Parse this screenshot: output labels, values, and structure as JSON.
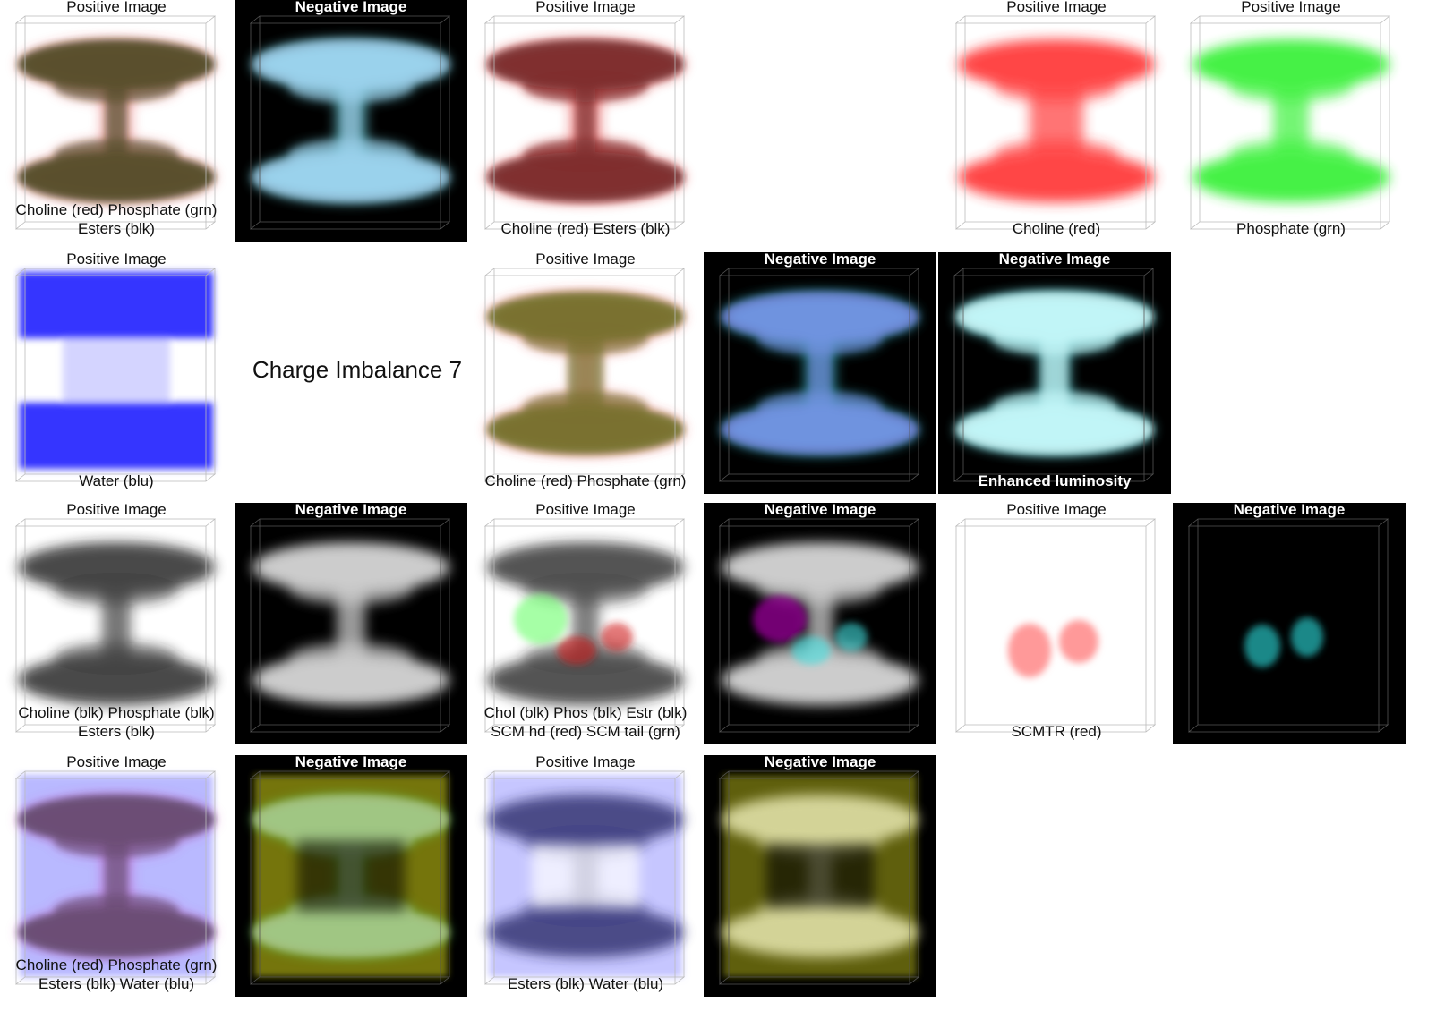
{
  "heading": "Charge Imbalance 7",
  "panels": [
    {
      "id": "r1c1",
      "title": "Positive Image",
      "mode": "pos",
      "style": "choline-phosphate-esters",
      "captions": [
        "Choline (red) Phosphate (grn)",
        "Esters (blk)"
      ]
    },
    {
      "id": "r1c2",
      "title": "Negative Image",
      "mode": "neg",
      "style": "cyan-light",
      "captions": []
    },
    {
      "id": "r1c3",
      "title": "Positive Image",
      "mode": "pos",
      "style": "choline-esters",
      "captions": [
        "Choline (red)  Esters (blk)"
      ]
    },
    {
      "id": "r1c5",
      "title": "Positive Image",
      "mode": "pos",
      "style": "choline",
      "captions": [
        "Choline (red)"
      ]
    },
    {
      "id": "r1c6",
      "title": "Positive Image",
      "mode": "pos",
      "style": "phosphate",
      "captions": [
        "Phosphate (grn)"
      ]
    },
    {
      "id": "r2c1",
      "title": "Positive Image",
      "mode": "pos",
      "style": "water",
      "captions": [
        "Water (blu)"
      ]
    },
    {
      "id": "r2c3",
      "title": "Positive Image",
      "mode": "pos",
      "style": "choline-phosphate",
      "captions": [
        "Choline (red) Phosphate (grn)"
      ]
    },
    {
      "id": "r2c4",
      "title": "Negative Image",
      "mode": "neg",
      "style": "cyan-violet",
      "captions": []
    },
    {
      "id": "r2c5",
      "title": "Negative Image",
      "mode": "neg",
      "style": "cyan-bright",
      "captions": [
        "Enhanced luminosity"
      ]
    },
    {
      "id": "r3c1",
      "title": "Positive Image",
      "mode": "pos",
      "style": "gray-dark",
      "captions": [
        "Choline (blk) Phosphate (blk)",
        "Esters (blk)"
      ]
    },
    {
      "id": "r3c2",
      "title": "Negative Image",
      "mode": "neg",
      "style": "gray-light",
      "captions": []
    },
    {
      "id": "r3c3",
      "title": "Positive Image",
      "mode": "pos",
      "style": "gray-scm",
      "captions": [
        "Chol (blk) Phos (blk) Estr (blk)",
        "SCM hd (red) SCM tail (grn)"
      ]
    },
    {
      "id": "r3c4",
      "title": "Negative Image",
      "mode": "neg",
      "style": "gray-scm-neg",
      "captions": []
    },
    {
      "id": "r3c5",
      "title": "Positive Image",
      "mode": "pos",
      "style": "scmtr",
      "captions": [
        "SCMTR (red)"
      ]
    },
    {
      "id": "r3c6",
      "title": "Negative Image",
      "mode": "neg",
      "style": "scmtr-neg",
      "captions": []
    },
    {
      "id": "r4c1",
      "title": "Positive Image",
      "mode": "pos",
      "style": "all-four",
      "captions": [
        "Choline (red) Phosphate (grn)",
        "Esters (blk) Water (blu)"
      ]
    },
    {
      "id": "r4c2",
      "title": "Negative Image",
      "mode": "neg",
      "style": "all-four-neg",
      "captions": []
    },
    {
      "id": "r4c3",
      "title": "Positive Image",
      "mode": "pos",
      "style": "esters-water",
      "captions": [
        "Esters (blk) Water (blu)"
      ]
    },
    {
      "id": "r4c4",
      "title": "Negative Image",
      "mode": "neg",
      "style": "esters-water-neg",
      "captions": []
    }
  ]
}
